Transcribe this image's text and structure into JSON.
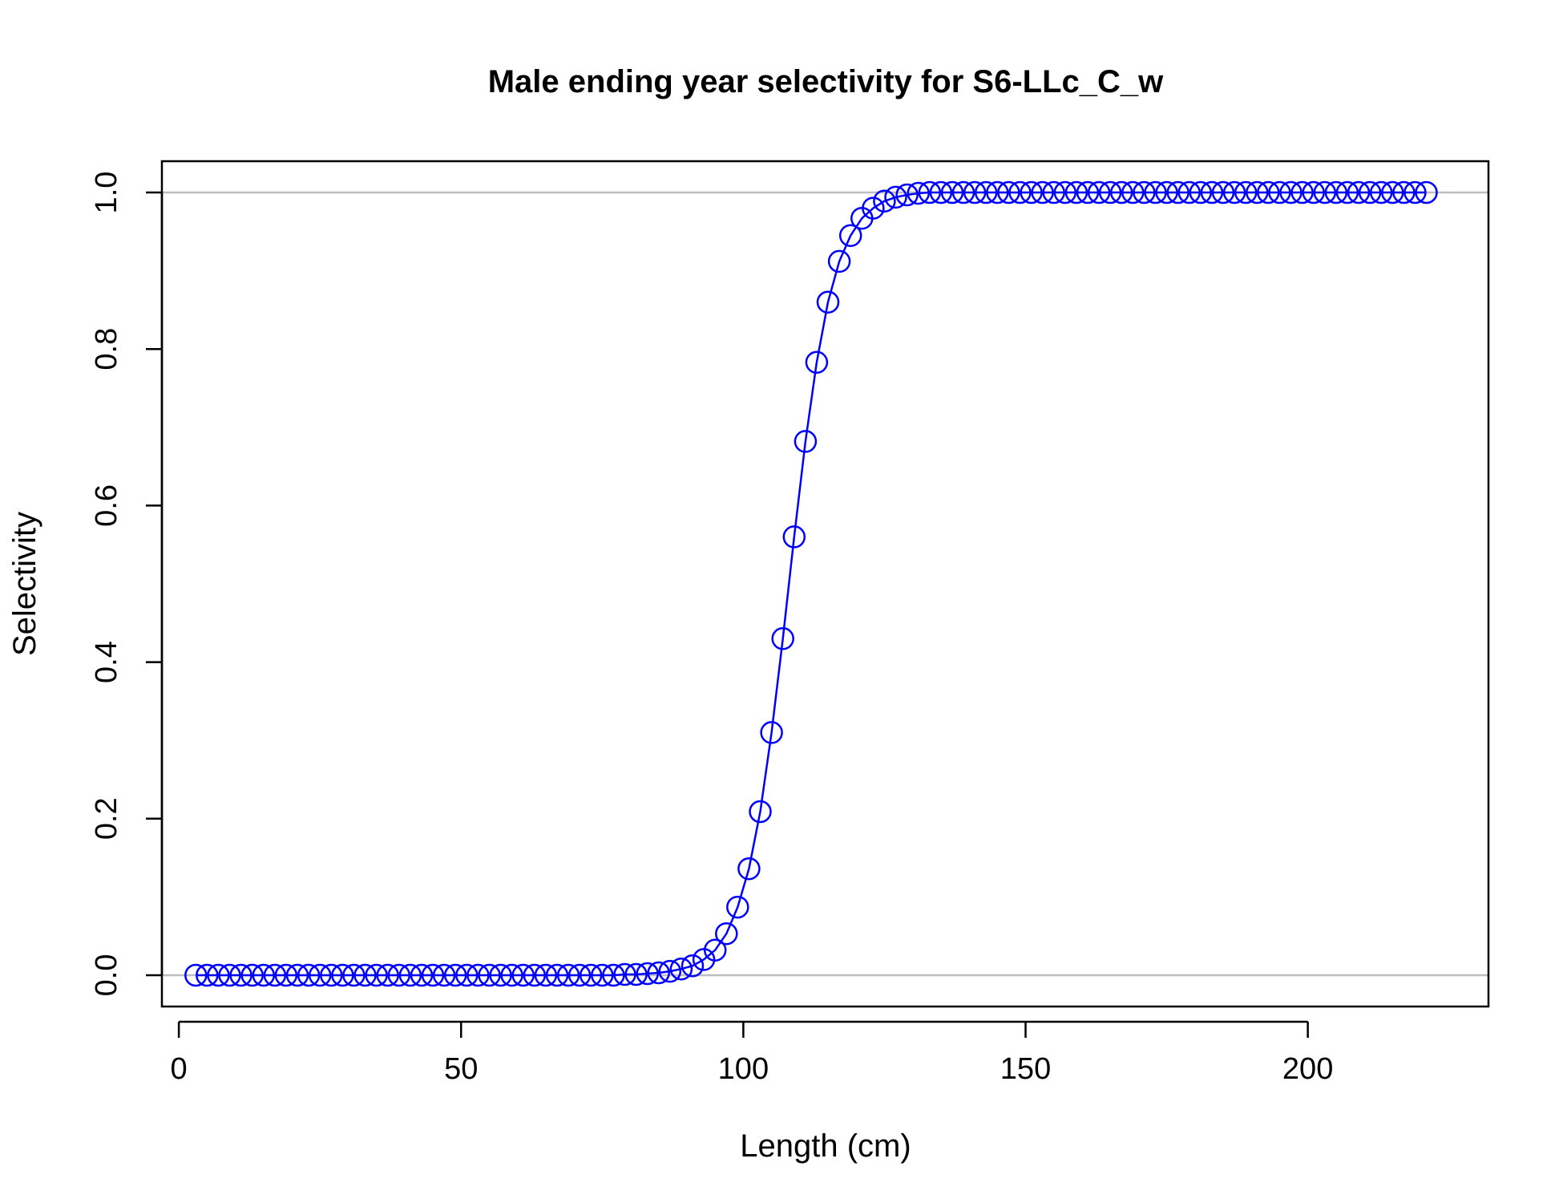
{
  "chart_data": {
    "type": "line",
    "title": "Male ending year selectivity for S6-LLc_C_w",
    "xlabel": "Length (cm)",
    "ylabel": "Selectivity",
    "xlim": [
      -3,
      232
    ],
    "ylim": [
      -0.04,
      1.04
    ],
    "x_ticks": [
      0,
      50,
      100,
      150,
      200
    ],
    "x_tick_labels": [
      "0",
      "50",
      "100",
      "150",
      "200"
    ],
    "y_ticks": [
      0.0,
      0.2,
      0.4,
      0.6,
      0.8,
      1.0
    ],
    "y_tick_labels": [
      "0.0",
      "0.2",
      "0.4",
      "0.6",
      "0.8",
      "1.0"
    ],
    "reference_lines_y": [
      0,
      1
    ],
    "grid": false,
    "markers": "open-circle",
    "colors": {
      "series": "#0000ff",
      "reference": "#bebebe",
      "axes": "#000000"
    },
    "series": [
      {
        "x": [
          3,
          5,
          7,
          9,
          11,
          13,
          15,
          17,
          19,
          21,
          23,
          25,
          27,
          29,
          31,
          33,
          35,
          37,
          39,
          41,
          43,
          45,
          47,
          49,
          51,
          53,
          55,
          57,
          59,
          61,
          63,
          65,
          67,
          69,
          71,
          73,
          75,
          77,
          79,
          81,
          83,
          85,
          87,
          89,
          91,
          93,
          95,
          97,
          99,
          101,
          103,
          105,
          107,
          109,
          111,
          113,
          115,
          117,
          119,
          121,
          123,
          125,
          127,
          129,
          131,
          133,
          135,
          137,
          139,
          141,
          143,
          145,
          147,
          149,
          151,
          153,
          155,
          157,
          159,
          161,
          163,
          165,
          167,
          169,
          171,
          173,
          175,
          177,
          179,
          181,
          183,
          185,
          187,
          189,
          191,
          193,
          195,
          197,
          199,
          201,
          203,
          205,
          207,
          209,
          211,
          213,
          215,
          217,
          219,
          221
        ],
        "values": [
          0,
          0,
          0,
          0,
          0,
          0,
          0,
          0,
          0,
          0,
          0,
          0,
          0,
          0,
          0,
          0,
          0,
          0,
          0,
          0,
          0,
          0,
          0,
          0,
          0,
          0,
          0,
          0,
          0,
          0,
          0,
          0,
          0,
          0,
          0,
          0,
          0,
          0,
          0.001,
          0.001,
          0.002,
          0.003,
          0.005,
          0.008,
          0.012,
          0.02,
          0.032,
          0.053,
          0.087,
          0.136,
          0.209,
          0.31,
          0.43,
          0.56,
          0.682,
          0.783,
          0.86,
          0.912,
          0.945,
          0.967,
          0.98,
          0.989,
          0.994,
          0.997,
          0.999,
          1,
          1,
          1,
          1,
          1,
          1,
          1,
          1,
          1,
          1,
          1,
          1,
          1,
          1,
          1,
          1,
          1,
          1,
          1,
          1,
          1,
          1,
          1,
          1,
          1,
          1,
          1,
          1,
          1,
          1,
          1,
          1,
          1,
          1,
          1,
          1,
          1,
          1,
          1,
          1,
          1,
          1,
          1,
          1,
          1
        ]
      }
    ]
  }
}
